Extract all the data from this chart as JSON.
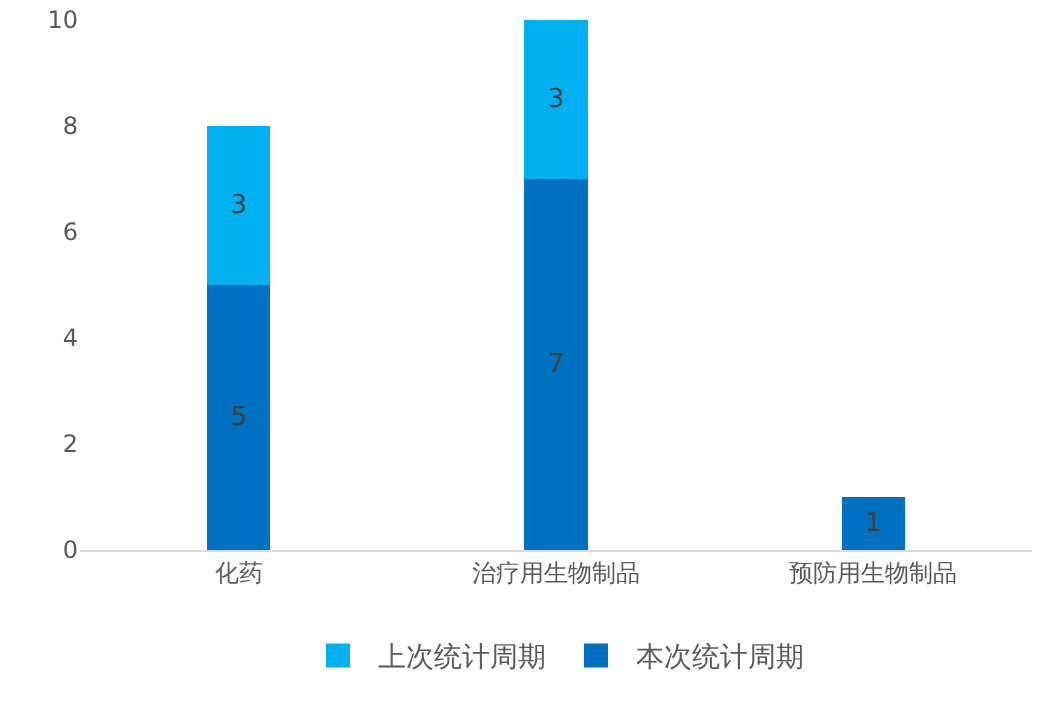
{
  "chart_data": {
    "type": "bar",
    "stacked": true,
    "categories": [
      "化药",
      "治疗用生物制品",
      "预防用生物制品"
    ],
    "series": [
      {
        "name": "本次统计周期",
        "color": "#0070c0",
        "values": [
          5,
          7,
          1
        ]
      },
      {
        "name": "上次统计周期",
        "color": "#00b0f0",
        "values": [
          3,
          3,
          null
        ]
      }
    ],
    "ylim": [
      0,
      10
    ],
    "yticks": [
      0,
      2,
      4,
      6,
      8,
      10
    ],
    "grid": false,
    "legend": "bottom",
    "data_labels": true
  }
}
